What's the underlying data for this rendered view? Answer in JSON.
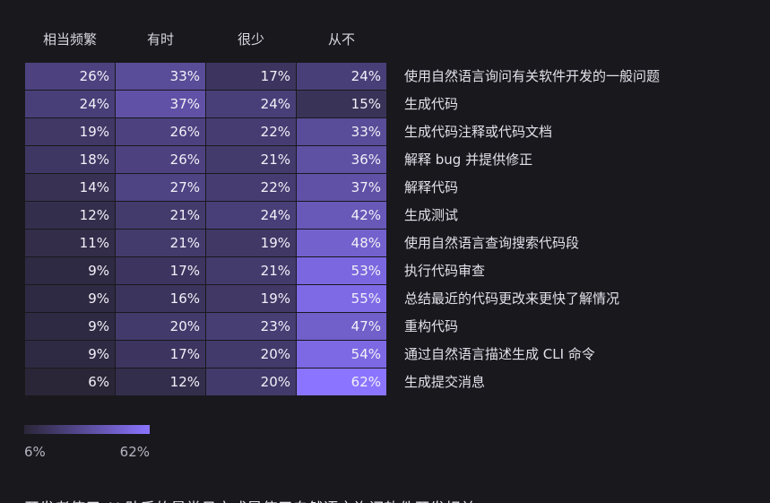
{
  "chart_data": {
    "type": "heatmap",
    "columns": [
      "相当频繁",
      "有时",
      "很少",
      "从不"
    ],
    "rows": [
      {
        "label": "使用自然语言询问有关软件开发的一般问题",
        "values": [
          26,
          33,
          17,
          24
        ]
      },
      {
        "label": "生成代码",
        "values": [
          24,
          37,
          24,
          15
        ]
      },
      {
        "label": "生成代码注释或代码文档",
        "values": [
          19,
          26,
          22,
          33
        ]
      },
      {
        "label": "解释 bug 并提供修正",
        "values": [
          18,
          26,
          21,
          36
        ]
      },
      {
        "label": "解释代码",
        "values": [
          14,
          27,
          22,
          37
        ]
      },
      {
        "label": "生成测试",
        "values": [
          12,
          21,
          24,
          42
        ]
      },
      {
        "label": "使用自然语言查询搜索代码段",
        "values": [
          11,
          21,
          19,
          48
        ]
      },
      {
        "label": "执行代码审查",
        "values": [
          9,
          17,
          21,
          53
        ]
      },
      {
        "label": "总结最近的代码更改来更快了解情况",
        "values": [
          9,
          16,
          19,
          55
        ]
      },
      {
        "label": "重构代码",
        "values": [
          9,
          20,
          23,
          47
        ]
      },
      {
        "label": "通过自然语言描述生成 CLI 命令",
        "values": [
          9,
          17,
          20,
          54
        ]
      },
      {
        "label": "生成提交消息",
        "values": [
          6,
          12,
          20,
          62
        ]
      }
    ],
    "value_suffix": "%",
    "color_scale": {
      "min": 6,
      "max": 62,
      "min_color": "#2a2638",
      "max_color": "#8b74ff",
      "min_label": "6%",
      "max_label": "62%"
    }
  },
  "footer": {
    "text": "开发者使用 AI 助手的最常见方式是使用自然语言询问软件开发相关"
  }
}
